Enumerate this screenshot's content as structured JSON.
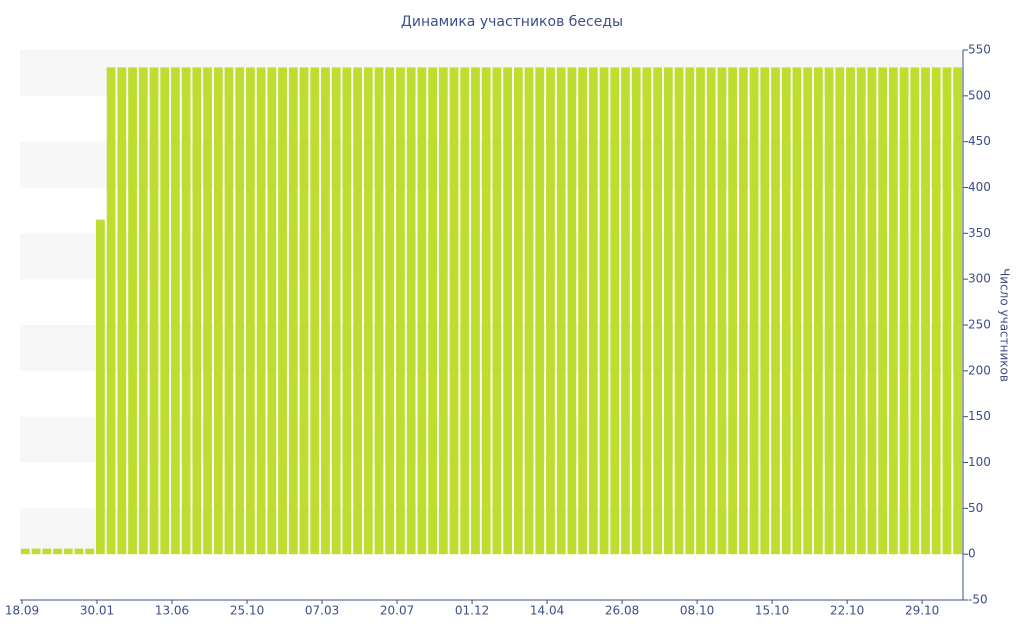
{
  "chart_data": {
    "type": "bar",
    "title": "Динамика участников беседы",
    "y_axis_label": "Число участников",
    "categories": [
      "18.09",
      null,
      null,
      null,
      null,
      null,
      null,
      "30.01",
      null,
      null,
      null,
      null,
      null,
      null,
      "13.06",
      null,
      null,
      null,
      null,
      null,
      null,
      "25.10",
      null,
      null,
      null,
      null,
      null,
      null,
      "07.03",
      null,
      null,
      null,
      null,
      null,
      null,
      "20.07",
      null,
      null,
      null,
      null,
      null,
      null,
      "01.12",
      null,
      null,
      null,
      null,
      null,
      null,
      "14.04",
      null,
      null,
      null,
      null,
      null,
      null,
      "26.08",
      null,
      null,
      null,
      null,
      null,
      null,
      "08.10",
      null,
      null,
      null,
      null,
      null,
      null,
      "15.10",
      null,
      null,
      null,
      null,
      null,
      null,
      "22.10",
      null,
      null,
      null,
      null,
      null,
      null,
      "29.10",
      null,
      null,
      null
    ],
    "values": [
      6,
      6,
      6,
      6,
      6,
      6,
      6,
      365,
      531,
      531,
      531,
      531,
      531,
      531,
      531,
      531,
      531,
      531,
      531,
      531,
      531,
      531,
      531,
      531,
      531,
      531,
      531,
      531,
      531,
      531,
      531,
      531,
      531,
      531,
      531,
      531,
      531,
      531,
      531,
      531,
      531,
      531,
      531,
      531,
      531,
      531,
      531,
      531,
      531,
      531,
      531,
      531,
      531,
      531,
      531,
      531,
      531,
      531,
      531,
      531,
      531,
      531,
      531,
      531,
      531,
      531,
      531,
      531,
      531,
      531,
      531,
      531,
      531,
      531,
      531,
      531,
      531,
      531,
      531,
      531,
      531,
      531,
      531,
      531,
      531,
      531,
      531,
      531
    ],
    "color": "#bfdd2f",
    "ylim": [
      -50,
      550
    ],
    "yticks": [
      -50,
      0,
      50,
      100,
      150,
      200,
      250,
      300,
      350,
      400,
      450,
      500,
      550
    ],
    "grid": true,
    "y_axis_side": "right"
  }
}
